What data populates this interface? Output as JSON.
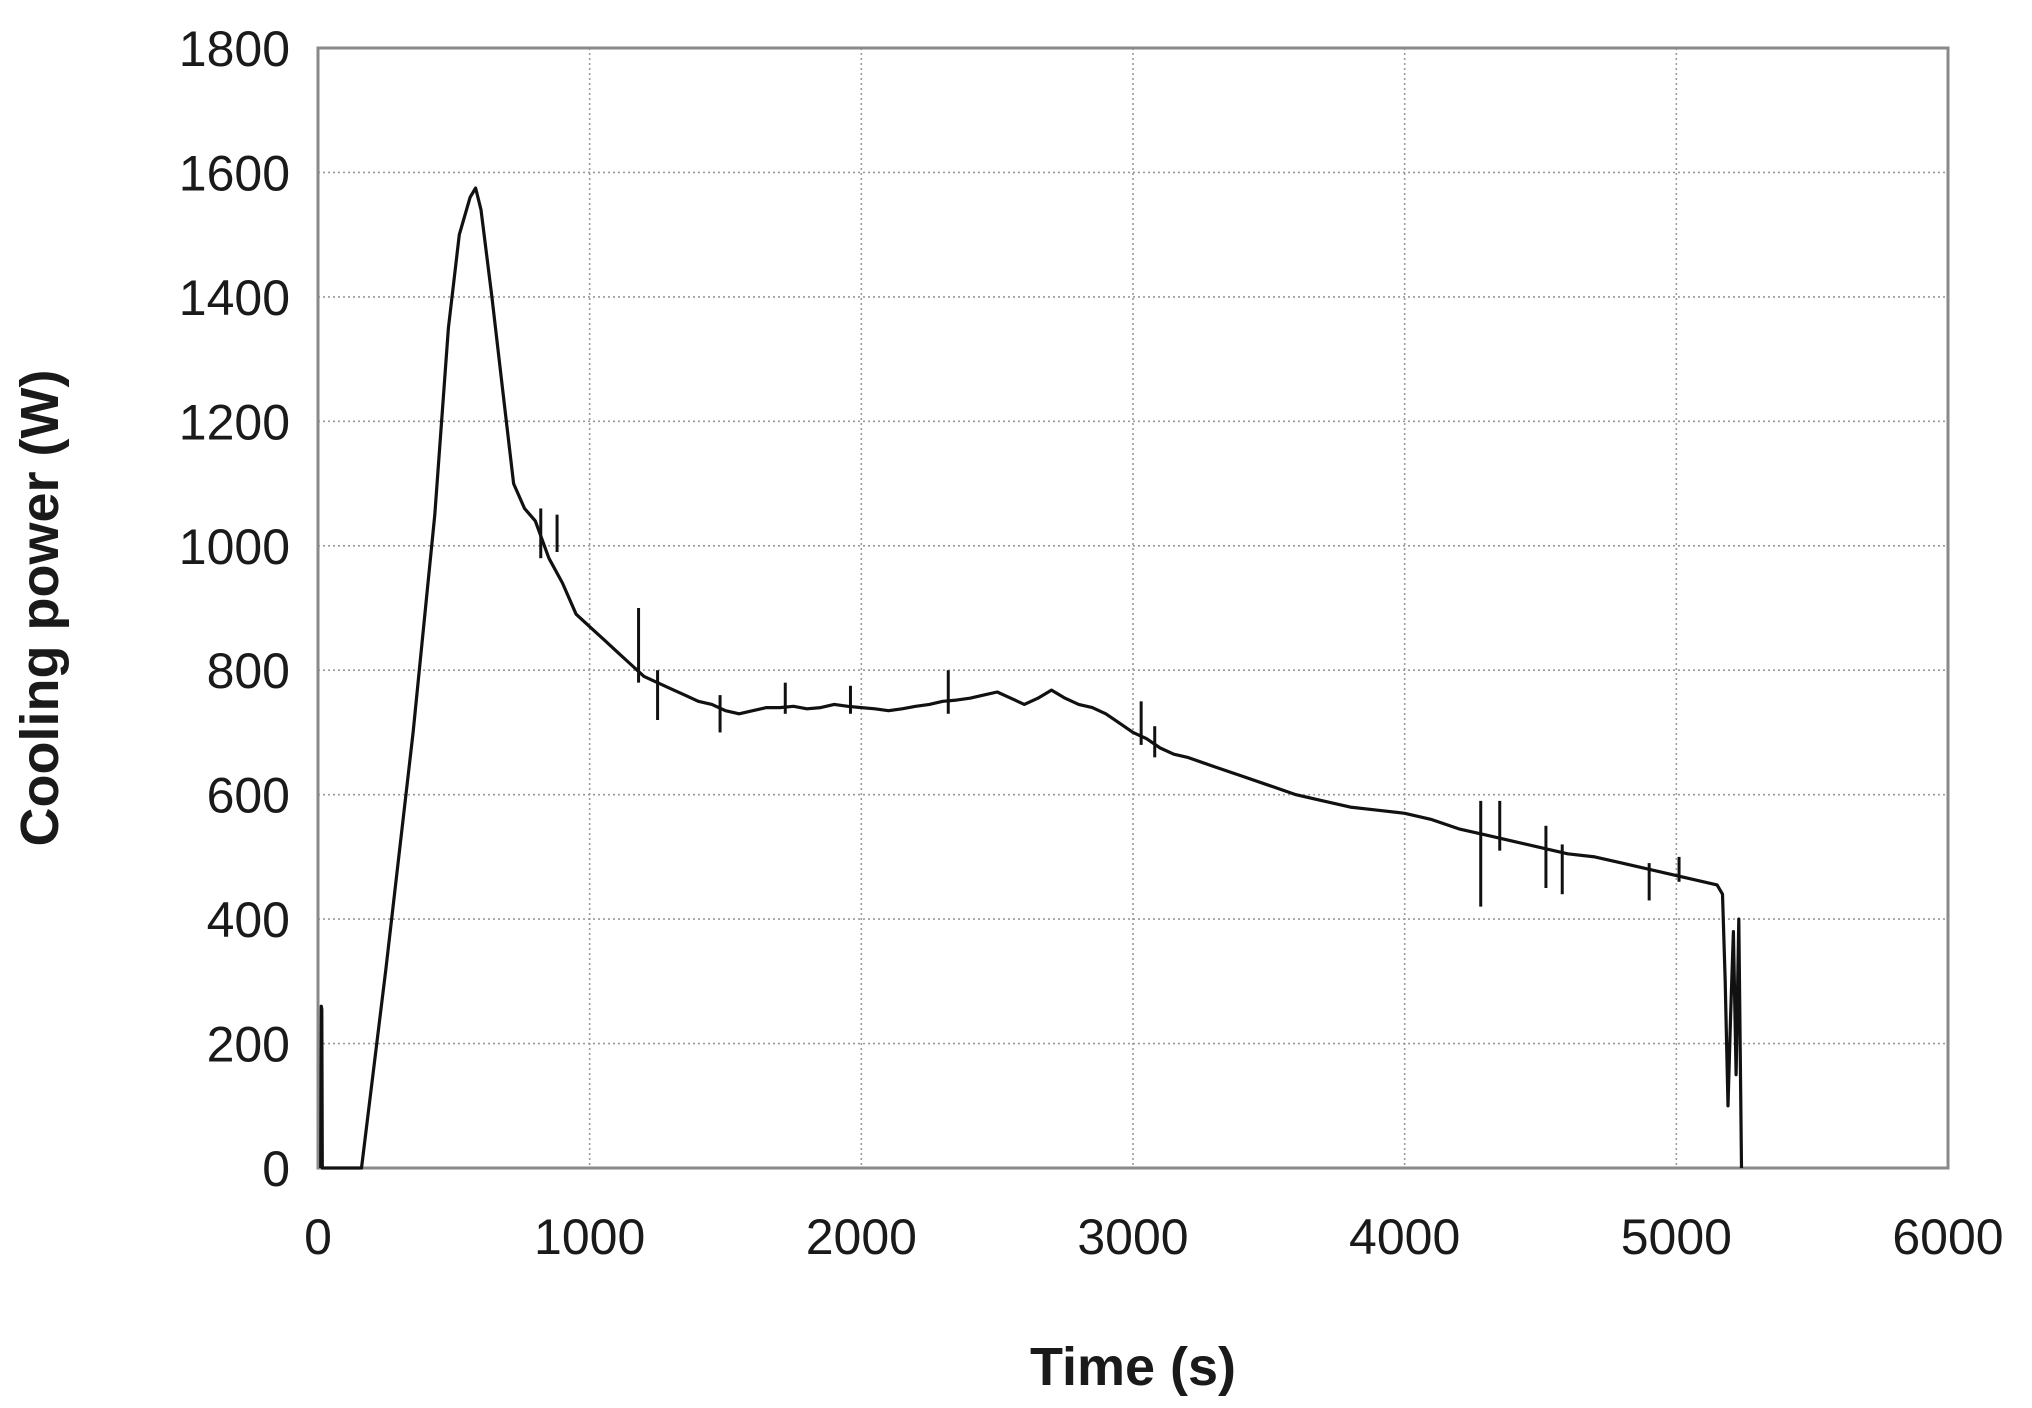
{
  "chart_data": {
    "type": "line",
    "title": "",
    "xlabel": "Time (s)",
    "ylabel": "Cooling power (W)",
    "xlim": [
      0,
      6000
    ],
    "ylim": [
      0,
      1800
    ],
    "x_ticks": [
      "0",
      "1000",
      "2000",
      "3000",
      "4000",
      "5000",
      "6000"
    ],
    "y_ticks": [
      "0",
      "200",
      "400",
      "600",
      "800",
      "1000",
      "1200",
      "1400",
      "1600",
      "1800"
    ],
    "grid": true,
    "legend": "none",
    "line_color": "#111111",
    "series": [
      {
        "x": [
          10,
          12,
          14,
          16,
          160,
          250,
          350,
          430,
          480,
          520,
          560,
          580,
          600,
          640,
          680,
          720,
          760,
          800,
          850,
          900,
          950,
          1000,
          1050,
          1100,
          1150,
          1200,
          1250,
          1300,
          1350,
          1400,
          1450,
          1500,
          1550,
          1600,
          1650,
          1700,
          1750,
          1800,
          1850,
          1900,
          1950,
          2000,
          2050,
          2100,
          2150,
          2200,
          2250,
          2300,
          2350,
          2400,
          2450,
          2500,
          2550,
          2600,
          2650,
          2700,
          2750,
          2800,
          2850,
          2900,
          2950,
          3000,
          3050,
          3100,
          3150,
          3200,
          3300,
          3400,
          3500,
          3600,
          3700,
          3800,
          3900,
          4000,
          4100,
          4200,
          4300,
          4400,
          4500,
          4600,
          4700,
          4800,
          4900,
          5000,
          5100,
          5150,
          5170,
          5180,
          5190,
          5200,
          5210,
          5220,
          5230,
          5240
        ],
        "y": [
          0,
          260,
          255,
          0,
          0,
          320,
          700,
          1050,
          1350,
          1500,
          1560,
          1575,
          1540,
          1400,
          1250,
          1100,
          1060,
          1040,
          980,
          940,
          890,
          870,
          850,
          830,
          810,
          790,
          780,
          770,
          760,
          750,
          745,
          735,
          730,
          735,
          740,
          740,
          742,
          738,
          740,
          745,
          742,
          740,
          738,
          735,
          738,
          742,
          745,
          750,
          752,
          755,
          760,
          765,
          755,
          745,
          755,
          768,
          755,
          745,
          740,
          730,
          715,
          700,
          690,
          675,
          665,
          660,
          645,
          630,
          615,
          600,
          590,
          580,
          575,
          570,
          560,
          545,
          535,
          525,
          515,
          505,
          500,
          490,
          480,
          470,
          460,
          455,
          440,
          300,
          100,
          250,
          380,
          150,
          400,
          0
        ]
      }
    ],
    "spikes": [
      {
        "x": 820,
        "low": 980,
        "high": 1060
      },
      {
        "x": 880,
        "low": 990,
        "high": 1050
      },
      {
        "x": 1180,
        "low": 780,
        "high": 900
      },
      {
        "x": 1250,
        "low": 720,
        "high": 800
      },
      {
        "x": 1480,
        "low": 700,
        "high": 760
      },
      {
        "x": 1720,
        "low": 730,
        "high": 780
      },
      {
        "x": 1960,
        "low": 730,
        "high": 775
      },
      {
        "x": 2320,
        "low": 730,
        "high": 800
      },
      {
        "x": 3030,
        "low": 680,
        "high": 750
      },
      {
        "x": 3080,
        "low": 660,
        "high": 710
      },
      {
        "x": 4280,
        "low": 420,
        "high": 590
      },
      {
        "x": 4350,
        "low": 510,
        "high": 590
      },
      {
        "x": 4520,
        "low": 450,
        "high": 550
      },
      {
        "x": 4580,
        "low": 440,
        "high": 520
      },
      {
        "x": 4900,
        "low": 430,
        "high": 490
      },
      {
        "x": 5010,
        "low": 460,
        "high": 500
      }
    ]
  }
}
